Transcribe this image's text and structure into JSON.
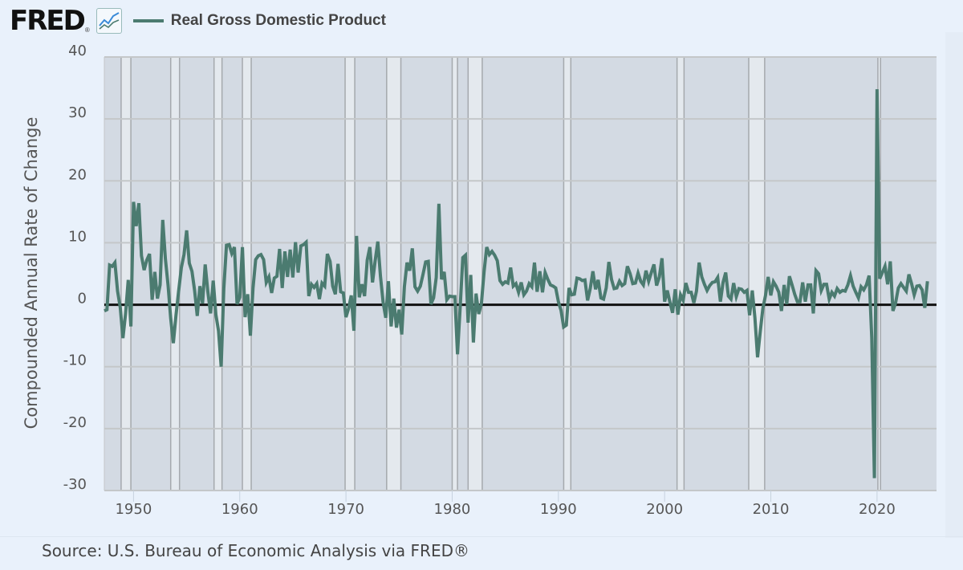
{
  "header": {
    "logo_text": "FRED",
    "logo_reg": "®",
    "legend_label": "Real Gross Domestic Product",
    "series_color": "#4b7b70"
  },
  "source_text": "Source: U.S. Bureau of Economic Analysis via FRED®",
  "chart_data": {
    "type": "line",
    "title": "Real Gross Domestic Product",
    "xlabel": "",
    "ylabel": "Compounded Annual Rate of Change",
    "ylim": [
      -30,
      40
    ],
    "xlim": [
      1947.25,
      2025.6
    ],
    "yticks": [
      -30,
      -20,
      -10,
      0,
      10,
      20,
      30,
      40
    ],
    "ytick_labels": [
      "-30",
      "-20",
      "-10",
      "0",
      "10",
      "20",
      "30",
      "40"
    ],
    "xticks": [
      1950,
      1960,
      1970,
      1980,
      1990,
      2000,
      2010,
      2020
    ],
    "xtick_labels": [
      "1950",
      "1960",
      "1970",
      "1980",
      "1990",
      "2000",
      "2010",
      "2020"
    ],
    "grid": true,
    "legend": "top-left",
    "recessions": [
      [
        1948.83,
        1949.75
      ],
      [
        1953.5,
        1954.33
      ],
      [
        1957.58,
        1958.33
      ],
      [
        1960.25,
        1961.08
      ],
      [
        1969.92,
        1970.83
      ],
      [
        1973.83,
        1975.17
      ],
      [
        1980.0,
        1980.5
      ],
      [
        1981.5,
        1982.83
      ],
      [
        1990.5,
        1991.17
      ],
      [
        2001.17,
        2001.83
      ],
      [
        2007.92,
        2009.42
      ],
      [
        2020.08,
        2020.33
      ]
    ],
    "series": [
      {
        "name": "Real Gross Domestic Product",
        "start": 1947.25,
        "freq_per_year": 4,
        "values": [
          -1.0,
          -0.8,
          6.4,
          6.2,
          6.8,
          2.2,
          -0.5,
          -5.4,
          -1.4,
          4.0,
          -3.5,
          16.6,
          12.7,
          16.4,
          7.9,
          5.6,
          7.2,
          8.2,
          0.8,
          5.3,
          1.0,
          3.2,
          13.7,
          7.4,
          3.2,
          -2.2,
          -6.2,
          -1.7,
          2.2,
          6.0,
          8.1,
          12.0,
          6.7,
          5.4,
          2.3,
          -1.8,
          3.0,
          0.2,
          6.5,
          2.1,
          -1.4,
          3.9,
          -1.6,
          -4.2,
          -10.0,
          2.6,
          9.6,
          9.7,
          8.3,
          9.3,
          0.1,
          1.2,
          9.3,
          -2.0,
          1.7,
          -5.0,
          2.7,
          7.3,
          7.9,
          8.1,
          7.3,
          3.6,
          4.5,
          1.9,
          4.3,
          4.6,
          9.0,
          2.7,
          8.6,
          4.5,
          8.9,
          4.4,
          10.1,
          5.2,
          9.5,
          9.7,
          10.1,
          1.4,
          3.3,
          2.8,
          3.4,
          0.9,
          3.5,
          3.0,
          8.2,
          7.0,
          3.0,
          1.7,
          6.6,
          2.1,
          1.9,
          -2.0,
          -0.6,
          1.5,
          -4.2,
          11.1,
          1.2,
          3.3,
          1.4,
          7.2,
          9.3,
          3.6,
          7.1,
          10.2,
          4.6,
          0.4,
          -2.1,
          3.8,
          -3.5,
          1.0,
          -3.7,
          -0.8,
          -4.8,
          2.9,
          6.8,
          5.5,
          9.1,
          2.9,
          2.2,
          3.0,
          4.9,
          6.9,
          7.0,
          0.1,
          1.1,
          4.4,
          16.3,
          4.1,
          5.3,
          0.8,
          1.4,
          1.3,
          1.3,
          -8.0,
          -0.5,
          7.6,
          8.0,
          -2.9,
          4.8,
          -6.1,
          1.8,
          -1.5,
          0.2,
          5.3,
          9.3,
          8.1,
          8.6,
          8.0,
          7.1,
          3.9,
          3.3,
          3.7,
          3.5,
          6.0,
          3.0,
          3.4,
          2.0,
          3.6,
          1.6,
          2.2,
          3.4,
          2.9,
          6.8,
          2.1,
          5.4,
          2.0,
          5.2,
          4.1,
          3.2,
          3.0,
          2.7,
          0.5,
          -0.9,
          -3.6,
          -3.3,
          2.7,
          1.6,
          1.7,
          4.3,
          4.2,
          3.9,
          4.0,
          0.7,
          2.6,
          5.4,
          2.5,
          4.0,
          1.1,
          0.9,
          2.7,
          6.9,
          4.1,
          2.6,
          2.7,
          3.8,
          3.1,
          3.4,
          6.2,
          5.0,
          3.4,
          3.5,
          5.1,
          3.8,
          3.2,
          5.5,
          3.8,
          5.2,
          6.5,
          3.1,
          4.5,
          7.5,
          0.5,
          2.3,
          0.4,
          -1.3,
          2.5,
          -1.6,
          1.6,
          0.7,
          3.5,
          2.0,
          2.0,
          0.3,
          2.2,
          6.8,
          4.5,
          3.3,
          2.3,
          3.1,
          3.6,
          3.7,
          4.4,
          0.5,
          3.6,
          5.2,
          1.4,
          0.9,
          3.5,
          1.3,
          2.6,
          2.5,
          2.0,
          2.3,
          -1.7,
          2.3,
          -2.1,
          -8.5,
          -4.4,
          -0.6,
          1.5,
          4.5,
          1.5,
          3.7,
          3.0,
          2.0,
          -1.0,
          3.2,
          0.1,
          4.6,
          3.2,
          1.7,
          0.5,
          0.5,
          3.6,
          0.5,
          3.2,
          3.2,
          -1.4,
          5.5,
          5.0,
          2.3,
          3.3,
          3.3,
          0.9,
          2.0,
          1.4,
          2.6,
          2.0,
          2.3,
          2.2,
          3.2,
          4.7,
          3.0,
          2.0,
          1.1,
          2.9,
          2.4,
          3.2,
          4.7,
          -5.3,
          -28.0,
          34.8,
          4.2,
          5.2,
          6.2,
          3.3,
          7.0,
          -1.0,
          0.3,
          2.7,
          3.4,
          2.8,
          2.2,
          4.9,
          3.4,
          1.6,
          3.0,
          3.1,
          2.4,
          -0.5,
          3.8
        ]
      }
    ]
  }
}
